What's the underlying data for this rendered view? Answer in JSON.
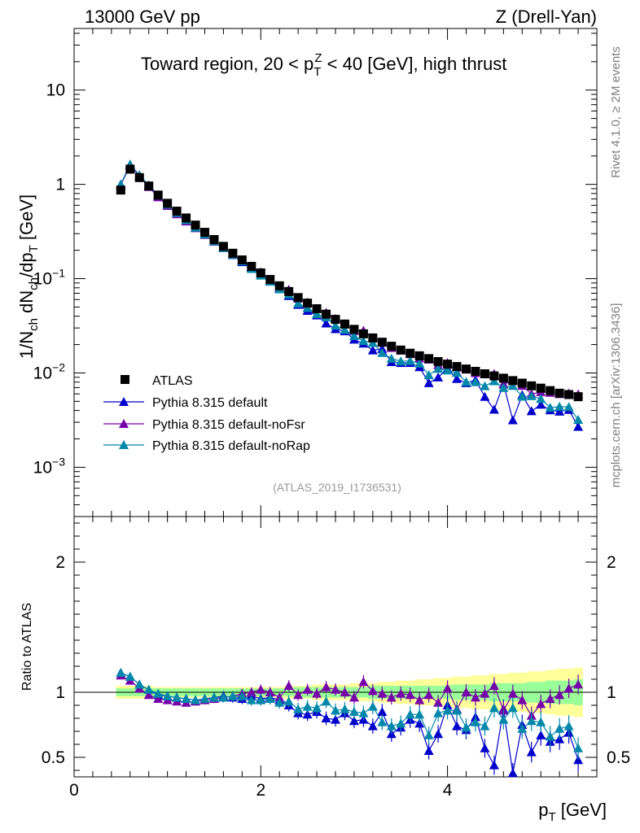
{
  "header": {
    "left": "13000 GeV pp",
    "right": "Z (Drell-Yan)",
    "title_pre": "Toward region, 20 < p",
    "title_sup": "Z",
    "title_sub": "T",
    "title_post": " < 40 [GeV], high thrust"
  },
  "side_labels": {
    "rivet": "Rivet 4.1.0, ≥ 2M events",
    "mcplots": "mcplots.cern.ch [arXiv:1306.3436]"
  },
  "watermark": "(ATLAS_2019_I1736531)",
  "yaxis_main": {
    "p1": "1/N",
    "s1": "ch",
    "p2": " dN",
    "s2": "ch",
    "p3": "/dp",
    "s3": "T",
    "p4": " [GeV]"
  },
  "yaxis_ratio": "Ratio to ATLAS",
  "xaxis": {
    "p": "p",
    "s": "T",
    "unit": " [GeV]"
  },
  "ticks_main": [
    {
      "v": 10,
      "m": "10",
      "e": ""
    },
    {
      "v": 1,
      "m": "1",
      "e": ""
    },
    {
      "v": 0.1,
      "m": "10",
      "e": "−1"
    },
    {
      "v": 0.01,
      "m": "10",
      "e": "−2"
    },
    {
      "v": 0.001,
      "m": "10",
      "e": "−3"
    }
  ],
  "ticks_ratio": [
    "2",
    "1",
    "0.5"
  ],
  "ticks_x": [
    "0",
    "2",
    "4"
  ],
  "legend": [
    "ATLAS",
    "Pythia 8.315 default",
    "Pythia 8.315 default-noFsr",
    "Pythia 8.315 default-noRap"
  ],
  "colors": {
    "atlas": "#000000",
    "default": "#0000cc",
    "noFsr": "#7700aa",
    "noRap": "#0088aa",
    "band_inner": "#99ff99",
    "band_outer": "#ffff99"
  },
  "chart_data": {
    "type": "scatter",
    "title": "Toward region, 20 < pT^Z < 40 [GeV], high thrust",
    "xlabel": "pT [GeV]",
    "ylabel": "1/Nch dNch/dpT [GeV]",
    "ratio_ylabel": "Ratio to ATLAS",
    "yscale": "log",
    "xlim": [
      0,
      5.6
    ],
    "ylim": [
      0.0003,
      45
    ],
    "ratio_ylim": [
      0.35,
      2.35
    ],
    "x": [
      0.5,
      0.6,
      0.7,
      0.8,
      0.9,
      1.0,
      1.1,
      1.2,
      1.3,
      1.4,
      1.5,
      1.6,
      1.7,
      1.8,
      1.9,
      2.0,
      2.1,
      2.2,
      2.3,
      2.4,
      2.5,
      2.6,
      2.7,
      2.8,
      2.9,
      3.0,
      3.1,
      3.2,
      3.3,
      3.4,
      3.5,
      3.6,
      3.7,
      3.8,
      3.9,
      4.0,
      4.1,
      4.2,
      4.3,
      4.4,
      4.5,
      4.6,
      4.7,
      4.8,
      4.9,
      5.0,
      5.1,
      5.2,
      5.3,
      5.4
    ],
    "series": [
      {
        "name": "ATLAS",
        "values": [
          0.87,
          1.45,
          1.18,
          0.96,
          0.77,
          0.63,
          0.52,
          0.44,
          0.37,
          0.31,
          0.26,
          0.22,
          0.186,
          0.158,
          0.135,
          0.115,
          0.098,
          0.084,
          0.073,
          0.063,
          0.055,
          0.048,
          0.042,
          0.037,
          0.033,
          0.029,
          0.026,
          0.0235,
          0.0212,
          0.0192,
          0.0175,
          0.0162,
          0.0152,
          0.0142,
          0.0132,
          0.0124,
          0.0117,
          0.011,
          0.0104,
          0.0098,
          0.0093,
          0.0088,
          0.0083,
          0.0078,
          0.0073,
          0.0069,
          0.0065,
          0.0061,
          0.0059,
          0.0056
        ]
      },
      {
        "name": "Pythia 8.315 default",
        "ratio": [
          1.15,
          1.12,
          1.06,
          1.02,
          0.98,
          0.97,
          0.96,
          0.95,
          0.94,
          0.95,
          0.96,
          0.97,
          0.96,
          0.95,
          0.97,
          0.95,
          0.96,
          0.94,
          0.9,
          0.84,
          0.83,
          0.85,
          0.8,
          0.79,
          0.84,
          0.78,
          0.79,
          0.74,
          0.85,
          0.68,
          0.73,
          0.79,
          0.76,
          0.55,
          0.68,
          0.9,
          0.74,
          0.71,
          0.81,
          0.57,
          0.44,
          0.87,
          0.38,
          0.75,
          0.54,
          0.67,
          0.62,
          0.64,
          0.69,
          0.48
        ]
      },
      {
        "name": "Pythia 8.315 default-noFsr",
        "ratio": [
          1.13,
          1.09,
          1.03,
          0.98,
          0.95,
          0.94,
          0.93,
          0.92,
          0.93,
          0.94,
          0.95,
          0.96,
          0.97,
          0.99,
          1.0,
          1.02,
          1.0,
          0.96,
          1.05,
          0.98,
          1.02,
          0.99,
          1.04,
          1.02,
          1.0,
          0.96,
          1.08,
          1.01,
          0.99,
          0.96,
          0.99,
          0.98,
          0.94,
          0.98,
          0.92,
          1.03,
          0.87,
          1.0,
          0.96,
          0.99,
          1.05,
          0.86,
          0.99,
          0.94,
          0.82,
          0.91,
          0.95,
          0.98,
          1.03,
          1.06
        ]
      },
      {
        "name": "Pythia 8.315 default-noRap",
        "ratio": [
          1.15,
          1.12,
          1.06,
          1.02,
          0.99,
          0.97,
          0.96,
          0.95,
          0.94,
          0.95,
          0.96,
          0.96,
          0.97,
          0.97,
          0.94,
          0.94,
          0.95,
          0.92,
          0.93,
          0.87,
          0.89,
          0.88,
          0.93,
          0.86,
          0.87,
          0.85,
          0.84,
          0.89,
          0.77,
          0.74,
          0.76,
          0.83,
          0.83,
          0.67,
          0.84,
          0.86,
          0.86,
          0.73,
          0.77,
          0.74,
          0.88,
          0.79,
          0.88,
          0.72,
          0.78,
          0.77,
          0.66,
          0.72,
          0.74,
          0.57
        ]
      }
    ],
    "band_inner_halfwidth": [
      0.03,
      0.03,
      0.03,
      0.03,
      0.03,
      0.03,
      0.03,
      0.03,
      0.03,
      0.03,
      0.03,
      0.03,
      0.03,
      0.03,
      0.03,
      0.03,
      0.03,
      0.03,
      0.03,
      0.04,
      0.04,
      0.04,
      0.04,
      0.04,
      0.04,
      0.04,
      0.04,
      0.05,
      0.05,
      0.05,
      0.05,
      0.05,
      0.05,
      0.05,
      0.05,
      0.05,
      0.06,
      0.06,
      0.06,
      0.06,
      0.07,
      0.07,
      0.07,
      0.07,
      0.08,
      0.08,
      0.09,
      0.09,
      0.09,
      0.1
    ],
    "band_outer_halfwidth": [
      0.05,
      0.05,
      0.05,
      0.05,
      0.04,
      0.04,
      0.04,
      0.04,
      0.04,
      0.04,
      0.04,
      0.04,
      0.04,
      0.04,
      0.04,
      0.04,
      0.04,
      0.04,
      0.05,
      0.05,
      0.05,
      0.06,
      0.06,
      0.06,
      0.06,
      0.07,
      0.07,
      0.07,
      0.08,
      0.08,
      0.09,
      0.09,
      0.1,
      0.1,
      0.11,
      0.11,
      0.12,
      0.12,
      0.13,
      0.13,
      0.14,
      0.14,
      0.15,
      0.15,
      0.16,
      0.16,
      0.17,
      0.18,
      0.18,
      0.19
    ]
  }
}
